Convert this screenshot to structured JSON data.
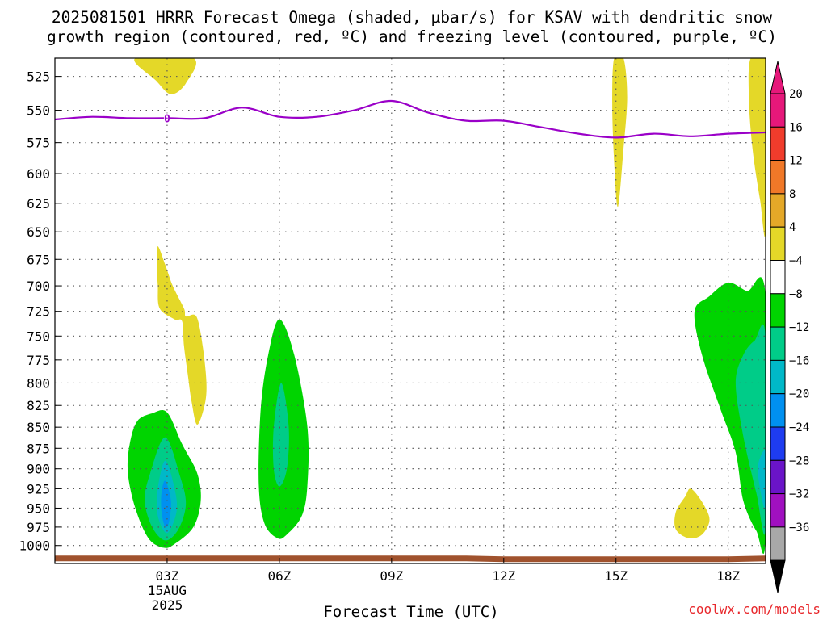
{
  "title_line1": "2025081501 HRRR Forecast Omega (shaded, µbar/s) for KSAV with dendritic snow",
  "title_line2": "growth region (contoured, red, ºC) and freezing level (contoured, purple, ºC)",
  "credit": "coolwx.com/models",
  "chart_data": {
    "type": "time-height cross section",
    "xlabel": "Forecast Time (UTC)",
    "x_range_hours": [
      0.0,
      19.0
    ],
    "x_ticks": [
      {
        "hour": 3,
        "label": "03Z",
        "extra": [
          "15AUG",
          "2025"
        ]
      },
      {
        "hour": 6,
        "label": "06Z",
        "extra": []
      },
      {
        "hour": 9,
        "label": "09Z",
        "extra": []
      },
      {
        "hour": 12,
        "label": "12Z",
        "extra": []
      },
      {
        "hour": 15,
        "label": "15Z",
        "extra": []
      },
      {
        "hour": 18,
        "label": "18Z",
        "extra": []
      }
    ],
    "y_scale": "log",
    "y_range_hpa": [
      1025,
      512
    ],
    "y_ticks": [
      "525",
      "550",
      "575",
      "600",
      "625",
      "650",
      "675",
      "700",
      "725",
      "750",
      "775",
      "800",
      "825",
      "850",
      "875",
      "900",
      "925",
      "950",
      "975",
      "1000"
    ],
    "grid": true,
    "colorbar": {
      "labels": [
        "20",
        "16",
        "12",
        "8",
        "4",
        "−4",
        "−8",
        "−12",
        "−16",
        "−20",
        "−24",
        "−28",
        "−32",
        "−36"
      ],
      "colors": [
        "#e6187a",
        "#f03c2c",
        "#f07828",
        "#e4a828",
        "#e4d828",
        "#ffffff",
        "#00d400",
        "#00cc88",
        "#00b8c8",
        "#0090f0",
        "#1e3cf0",
        "#6a14c8",
        "#a010c0",
        "#a8a8a8"
      ],
      "over_color": "#e6187a",
      "under_color": "#000000"
    },
    "freezing_level": {
      "color": "#9a00c8",
      "label": "0",
      "label_point": {
        "hour": 3.0,
        "hpa": 556
      },
      "points": [
        {
          "hour": 0.0,
          "hpa": 557
        },
        {
          "hour": 1.0,
          "hpa": 555
        },
        {
          "hour": 2.0,
          "hpa": 556
        },
        {
          "hour": 3.0,
          "hpa": 556
        },
        {
          "hour": 4.0,
          "hpa": 556
        },
        {
          "hour": 5.0,
          "hpa": 548
        },
        {
          "hour": 6.0,
          "hpa": 555
        },
        {
          "hour": 7.0,
          "hpa": 555
        },
        {
          "hour": 8.0,
          "hpa": 550
        },
        {
          "hour": 9.0,
          "hpa": 543
        },
        {
          "hour": 10.0,
          "hpa": 552
        },
        {
          "hour": 11.0,
          "hpa": 558
        },
        {
          "hour": 12.0,
          "hpa": 558
        },
        {
          "hour": 13.0,
          "hpa": 563
        },
        {
          "hour": 14.0,
          "hpa": 568
        },
        {
          "hour": 15.0,
          "hpa": 571
        },
        {
          "hour": 16.0,
          "hpa": 568
        },
        {
          "hour": 17.0,
          "hpa": 570
        },
        {
          "hour": 18.0,
          "hpa": 568
        },
        {
          "hour": 19.0,
          "hpa": 567
        }
      ]
    },
    "surface": {
      "color": "#a0522d",
      "points": [
        {
          "hour": 0.0,
          "hpa": 1018
        },
        {
          "hour": 11.0,
          "hpa": 1018
        },
        {
          "hour": 12.0,
          "hpa": 1019
        },
        {
          "hour": 18.0,
          "hpa": 1019
        },
        {
          "hour": 19.0,
          "hpa": 1018
        }
      ]
    },
    "shaded_regions": [
      {
        "name": "pos-cap-03z",
        "omega_min": 4,
        "color": "#e4d828",
        "points": [
          {
            "hour": 2.15,
            "hpa": 512
          },
          {
            "hour": 3.7,
            "hpa": 512
          },
          {
            "hour": 3.5,
            "hpa": 530
          },
          {
            "hour": 3.1,
            "hpa": 538
          },
          {
            "hour": 2.7,
            "hpa": 528
          }
        ]
      },
      {
        "name": "pos-plume-03z",
        "omega_min": 4,
        "color": "#e4d828",
        "points": [
          {
            "hour": 2.75,
            "hpa": 663
          },
          {
            "hour": 2.95,
            "hpa": 680
          },
          {
            "hour": 3.15,
            "hpa": 700
          },
          {
            "hour": 3.45,
            "hpa": 722
          },
          {
            "hour": 3.5,
            "hpa": 730
          },
          {
            "hour": 3.78,
            "hpa": 730
          },
          {
            "hour": 3.95,
            "hpa": 760
          },
          {
            "hour": 4.05,
            "hpa": 800
          },
          {
            "hour": 4.0,
            "hpa": 825
          },
          {
            "hour": 3.8,
            "hpa": 847
          },
          {
            "hour": 3.65,
            "hpa": 820
          },
          {
            "hour": 3.55,
            "hpa": 790
          },
          {
            "hour": 3.45,
            "hpa": 760
          },
          {
            "hour": 3.4,
            "hpa": 735
          },
          {
            "hour": 3.2,
            "hpa": 733
          },
          {
            "hour": 2.8,
            "hpa": 722
          },
          {
            "hour": 2.75,
            "hpa": 700
          },
          {
            "hour": 2.73,
            "hpa": 680
          }
        ]
      },
      {
        "name": "neg-low-03z",
        "omega_min": -8,
        "color": "#00d400",
        "points": [
          {
            "hour": 3.0,
            "hpa": 833
          },
          {
            "hour": 3.4,
            "hpa": 870
          },
          {
            "hour": 3.8,
            "hpa": 905
          },
          {
            "hour": 3.9,
            "hpa": 940
          },
          {
            "hour": 3.7,
            "hpa": 975
          },
          {
            "hour": 3.2,
            "hpa": 998
          },
          {
            "hour": 2.9,
            "hpa": 1003
          },
          {
            "hour": 2.5,
            "hpa": 990
          },
          {
            "hour": 2.15,
            "hpa": 950
          },
          {
            "hour": 1.95,
            "hpa": 905
          },
          {
            "hour": 2.0,
            "hpa": 870
          },
          {
            "hour": 2.2,
            "hpa": 843
          },
          {
            "hour": 2.6,
            "hpa": 834
          }
        ]
      },
      {
        "name": "neg-low-03z-inner",
        "omega_min": -12,
        "color": "#00cc88",
        "points": [
          {
            "hour": 2.95,
            "hpa": 862
          },
          {
            "hour": 3.35,
            "hpa": 910
          },
          {
            "hour": 3.5,
            "hpa": 945
          },
          {
            "hour": 3.3,
            "hpa": 978
          },
          {
            "hour": 2.95,
            "hpa": 993
          },
          {
            "hour": 2.6,
            "hpa": 975
          },
          {
            "hour": 2.4,
            "hpa": 940
          },
          {
            "hour": 2.55,
            "hpa": 905
          }
        ]
      },
      {
        "name": "neg-low-03z-core",
        "omega_min": -16,
        "color": "#00b8c8",
        "points": [
          {
            "hour": 2.95,
            "hpa": 890
          },
          {
            "hour": 3.2,
            "hpa": 925
          },
          {
            "hour": 3.25,
            "hpa": 955
          },
          {
            "hour": 3.0,
            "hpa": 983
          },
          {
            "hour": 2.75,
            "hpa": 960
          },
          {
            "hour": 2.75,
            "hpa": 925
          }
        ]
      },
      {
        "name": "neg-low-03z-max",
        "omega_min": -20,
        "color": "#0090f0",
        "points": [
          {
            "hour": 2.95,
            "hpa": 915
          },
          {
            "hour": 3.1,
            "hpa": 940
          },
          {
            "hour": 3.05,
            "hpa": 968
          },
          {
            "hour": 2.95,
            "hpa": 975
          },
          {
            "hour": 2.85,
            "hpa": 955
          },
          {
            "hour": 2.85,
            "hpa": 930
          }
        ]
      },
      {
        "name": "neg-06z",
        "omega_min": -8,
        "color": "#00d400",
        "points": [
          {
            "hour": 6.0,
            "hpa": 733
          },
          {
            "hour": 6.4,
            "hpa": 770
          },
          {
            "hour": 6.75,
            "hpa": 850
          },
          {
            "hour": 6.75,
            "hpa": 920
          },
          {
            "hour": 6.6,
            "hpa": 960
          },
          {
            "hour": 6.2,
            "hpa": 985
          },
          {
            "hour": 5.95,
            "hpa": 990
          },
          {
            "hour": 5.6,
            "hpa": 970
          },
          {
            "hour": 5.45,
            "hpa": 920
          },
          {
            "hour": 5.5,
            "hpa": 830
          },
          {
            "hour": 5.7,
            "hpa": 770
          }
        ]
      },
      {
        "name": "neg-06z-inner",
        "omega_min": -12,
        "color": "#00cc88",
        "points": [
          {
            "hour": 6.05,
            "hpa": 800
          },
          {
            "hour": 6.25,
            "hpa": 850
          },
          {
            "hour": 6.2,
            "hpa": 900
          },
          {
            "hour": 6.0,
            "hpa": 922
          },
          {
            "hour": 5.85,
            "hpa": 900
          },
          {
            "hour": 5.85,
            "hpa": 850
          }
        ]
      },
      {
        "name": "pos-15z",
        "omega_min": 4,
        "color": "#e4d828",
        "points": [
          {
            "hour": 14.95,
            "hpa": 512
          },
          {
            "hour": 15.2,
            "hpa": 512
          },
          {
            "hour": 15.3,
            "hpa": 540
          },
          {
            "hour": 15.2,
            "hpa": 580
          },
          {
            "hour": 15.05,
            "hpa": 628
          },
          {
            "hour": 14.95,
            "hpa": 590
          },
          {
            "hour": 14.9,
            "hpa": 545
          }
        ]
      },
      {
        "name": "pos-17z",
        "omega_min": 4,
        "color": "#e4d828",
        "points": [
          {
            "hour": 17.0,
            "hpa": 925
          },
          {
            "hour": 17.3,
            "hpa": 942
          },
          {
            "hour": 17.5,
            "hpa": 965
          },
          {
            "hour": 17.3,
            "hpa": 985
          },
          {
            "hour": 16.95,
            "hpa": 990
          },
          {
            "hour": 16.6,
            "hpa": 978
          },
          {
            "hour": 16.6,
            "hpa": 955
          },
          {
            "hour": 16.85,
            "hpa": 935
          }
        ]
      },
      {
        "name": "neg-18z",
        "omega_min": -8,
        "color": "#00d400",
        "points": [
          {
            "hour": 18.0,
            "hpa": 697
          },
          {
            "hour": 18.5,
            "hpa": 705
          },
          {
            "hour": 19.0,
            "hpa": 710
          },
          {
            "hour": 19.0,
            "hpa": 988
          },
          {
            "hour": 18.75,
            "hpa": 980
          },
          {
            "hour": 18.4,
            "hpa": 940
          },
          {
            "hour": 18.2,
            "hpa": 880
          },
          {
            "hour": 17.8,
            "hpa": 830
          },
          {
            "hour": 17.3,
            "hpa": 770
          },
          {
            "hour": 17.1,
            "hpa": 725
          },
          {
            "hour": 17.5,
            "hpa": 710
          }
        ]
      },
      {
        "name": "neg-18z-inner",
        "omega_min": -12,
        "color": "#00cc88",
        "points": [
          {
            "hour": 19.0,
            "hpa": 752
          },
          {
            "hour": 19.0,
            "hpa": 975
          },
          {
            "hour": 18.75,
            "hpa": 930
          },
          {
            "hour": 18.4,
            "hpa": 860
          },
          {
            "hour": 18.2,
            "hpa": 800
          },
          {
            "hour": 18.4,
            "hpa": 770
          },
          {
            "hour": 18.7,
            "hpa": 755
          }
        ]
      },
      {
        "name": "neg-18z-core",
        "omega_min": -16,
        "color": "#00b8c8",
        "points": [
          {
            "hour": 19.0,
            "hpa": 880
          },
          {
            "hour": 19.0,
            "hpa": 950
          },
          {
            "hour": 18.85,
            "hpa": 925
          },
          {
            "hour": 18.8,
            "hpa": 895
          }
        ]
      },
      {
        "name": "pos-19z",
        "omega_min": 4,
        "color": "#e4d828",
        "points": [
          {
            "hour": 18.6,
            "hpa": 512
          },
          {
            "hour": 19.0,
            "hpa": 512
          },
          {
            "hour": 19.0,
            "hpa": 648
          },
          {
            "hour": 18.85,
            "hpa": 622
          },
          {
            "hour": 18.65,
            "hpa": 580
          },
          {
            "hour": 18.55,
            "hpa": 540
          }
        ]
      }
    ]
  }
}
